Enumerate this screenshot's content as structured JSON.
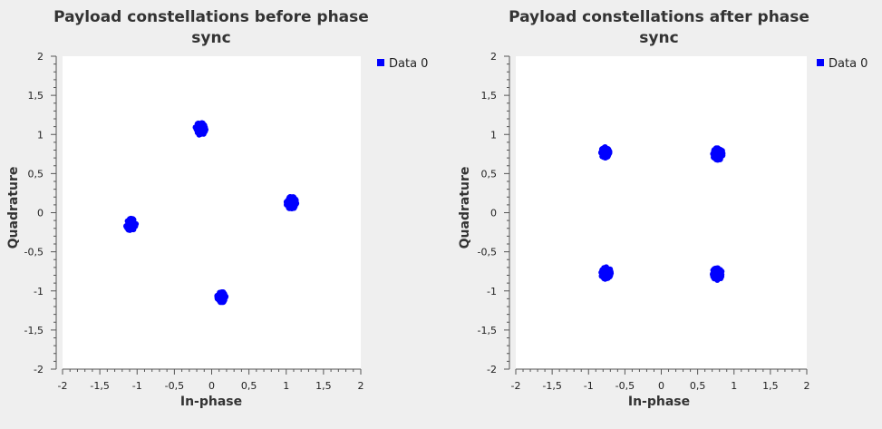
{
  "colors": {
    "background": "#efefef",
    "plot_area": "#ffffff",
    "marker": "#0000ff",
    "axis": "#555555"
  },
  "chart_data": [
    {
      "type": "scatter",
      "title_lines": [
        "Payload constellations before phase",
        "sync"
      ],
      "xlabel": "In-phase",
      "ylabel": "Quadrature",
      "xlim": [
        -2,
        2
      ],
      "ylim": [
        -2,
        2
      ],
      "xticks": [
        "-2",
        "-1,5",
        "-1",
        "-0,5",
        "0",
        "0,5",
        "1",
        "1,5",
        "2"
      ],
      "yticks": [
        "-2",
        "-1,5",
        "-1",
        "-0,5",
        "0",
        "0,5",
        "1",
        "1,5",
        "2"
      ],
      "grid": false,
      "legend_position": "top-right",
      "series": [
        {
          "name": "Data 0",
          "color": "#0000ff",
          "clusters": [
            {
              "x": -0.15,
              "y": 1.07,
              "spread": 0.07
            },
            {
              "x": 1.07,
              "y": 0.13,
              "spread": 0.07
            },
            {
              "x": 0.13,
              "y": -1.08,
              "spread": 0.06
            },
            {
              "x": -1.08,
              "y": -0.15,
              "spread": 0.07
            }
          ]
        }
      ]
    },
    {
      "type": "scatter",
      "title_lines": [
        "Payload constellations after phase",
        "sync"
      ],
      "xlabel": "In-phase",
      "ylabel": "Quadrature",
      "xlim": [
        -2,
        2
      ],
      "ylim": [
        -2,
        2
      ],
      "xticks": [
        "-2",
        "-1,5",
        "-1",
        "-0,5",
        "0",
        "0,5",
        "1",
        "1,5",
        "2"
      ],
      "yticks": [
        "-2",
        "-1,5",
        "-1",
        "-0,5",
        "0",
        "0,5",
        "1",
        "1,5",
        "2"
      ],
      "grid": false,
      "legend_position": "top-right",
      "series": [
        {
          "name": "Data 0",
          "color": "#0000ff",
          "clusters": [
            {
              "x": -0.77,
              "y": 0.77,
              "spread": 0.06
            },
            {
              "x": 0.78,
              "y": 0.75,
              "spread": 0.07
            },
            {
              "x": -0.76,
              "y": -0.77,
              "spread": 0.07
            },
            {
              "x": 0.77,
              "y": -0.78,
              "spread": 0.07
            }
          ]
        }
      ]
    }
  ]
}
